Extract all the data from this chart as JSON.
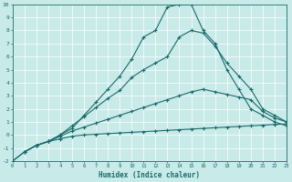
{
  "xlabel": "Humidex (Indice chaleur)",
  "xlim": [
    0,
    23
  ],
  "ylim": [
    -2,
    10
  ],
  "xticks": [
    0,
    1,
    2,
    3,
    4,
    5,
    6,
    7,
    8,
    9,
    10,
    11,
    12,
    13,
    14,
    15,
    16,
    17,
    18,
    19,
    20,
    21,
    22,
    23
  ],
  "yticks": [
    -2,
    -1,
    0,
    1,
    2,
    3,
    4,
    5,
    6,
    7,
    8,
    9,
    10
  ],
  "bg_color": "#c8eae8",
  "line_color": "#1a6b6b",
  "line_width": 0.8,
  "marker": "+",
  "marker_size": 3,
  "lines": [
    {
      "x": [
        0,
        1,
        2,
        3,
        4,
        5,
        6,
        7,
        8,
        9,
        10,
        11,
        12,
        13,
        14,
        15,
        16,
        17,
        18,
        19,
        20,
        21,
        22,
        23
      ],
      "y": [
        -2.0,
        -1.3,
        -0.8,
        -0.5,
        -0.3,
        -0.1,
        0.0,
        0.05,
        0.1,
        0.15,
        0.2,
        0.25,
        0.3,
        0.35,
        0.4,
        0.45,
        0.5,
        0.55,
        0.6,
        0.65,
        0.7,
        0.75,
        0.8,
        0.85
      ]
    },
    {
      "x": [
        0,
        1,
        2,
        3,
        4,
        5,
        6,
        7,
        8,
        9,
        10,
        11,
        12,
        13,
        14,
        15,
        16,
        17,
        18,
        19,
        20,
        21,
        22,
        23
      ],
      "y": [
        -2.0,
        -1.3,
        -0.8,
        -0.5,
        -0.1,
        0.3,
        0.6,
        0.9,
        1.2,
        1.5,
        1.8,
        2.1,
        2.4,
        2.7,
        3.0,
        3.3,
        3.5,
        3.3,
        3.1,
        2.9,
        2.7,
        1.8,
        1.3,
        1.0
      ]
    },
    {
      "x": [
        1,
        2,
        3,
        4,
        5,
        6,
        7,
        8,
        9,
        10,
        11,
        12,
        13,
        14,
        15,
        16,
        17,
        18,
        19,
        20,
        21,
        22,
        23
      ],
      "y": [
        -1.3,
        -0.8,
        -0.5,
        0.0,
        0.7,
        1.4,
        2.1,
        2.8,
        3.4,
        4.4,
        5.0,
        5.5,
        6.0,
        7.5,
        8.0,
        7.8,
        6.8,
        5.5,
        4.5,
        3.5,
        2.0,
        1.5,
        1.0
      ]
    },
    {
      "x": [
        1,
        2,
        3,
        4,
        5,
        6,
        7,
        8,
        9,
        10,
        11,
        12,
        13,
        14,
        15,
        16,
        17,
        18,
        19,
        20,
        21,
        22,
        23
      ],
      "y": [
        -1.3,
        -0.8,
        -0.5,
        0.0,
        0.5,
        1.5,
        2.5,
        3.5,
        4.5,
        5.8,
        7.5,
        8.0,
        9.8,
        10.0,
        10.0,
        8.0,
        7.0,
        5.0,
        3.5,
        2.0,
        1.5,
        1.0,
        0.7
      ]
    }
  ]
}
